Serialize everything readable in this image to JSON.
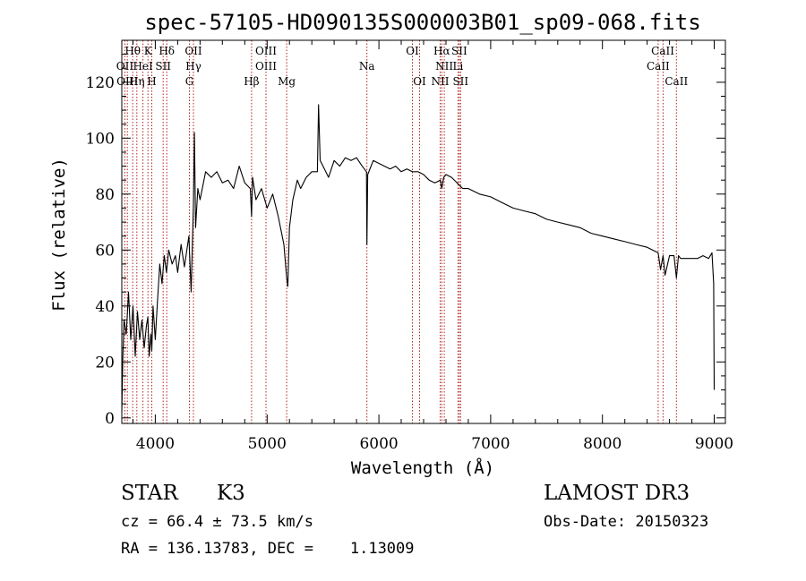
{
  "chart_data": {
    "type": "line",
    "title": "spec-57105-HD090135S000003B01_sp09-068.fits",
    "xlabel": "Wavelength (Å)",
    "ylabel": "Flux (relative)",
    "xlim": [
      3700,
      9100
    ],
    "ylim": [
      -2,
      135
    ],
    "xticks": [
      4000,
      5000,
      6000,
      7000,
      8000,
      9000
    ],
    "yticks": [
      0,
      20,
      40,
      60,
      80,
      100,
      120
    ],
    "series": [
      {
        "name": "flux",
        "x": [
          3700,
          3710,
          3720,
          3740,
          3760,
          3780,
          3800,
          3820,
          3840,
          3860,
          3880,
          3900,
          3920,
          3933,
          3945,
          3960,
          3968,
          3980,
          4000,
          4020,
          4040,
          4060,
          4080,
          4100,
          4120,
          4150,
          4180,
          4200,
          4230,
          4260,
          4300,
          4320,
          4340,
          4350,
          4360,
          4380,
          4400,
          4420,
          4450,
          4500,
          4550,
          4600,
          4650,
          4700,
          4750,
          4800,
          4850,
          4861,
          4870,
          4900,
          4950,
          5000,
          5050,
          5100,
          5150,
          5175,
          5185,
          5200,
          5230,
          5270,
          5300,
          5350,
          5400,
          5450,
          5460,
          5475,
          5500,
          5550,
          5600,
          5650,
          5700,
          5750,
          5800,
          5850,
          5889,
          5893,
          5900,
          5950,
          6000,
          6050,
          6100,
          6150,
          6200,
          6250,
          6300,
          6350,
          6400,
          6450,
          6500,
          6550,
          6563,
          6580,
          6600,
          6650,
          6700,
          6750,
          6800,
          6900,
          7000,
          7100,
          7200,
          7300,
          7400,
          7500,
          7600,
          7700,
          7800,
          7900,
          8000,
          8100,
          8200,
          8300,
          8400,
          8498,
          8520,
          8542,
          8560,
          8600,
          8640,
          8662,
          8680,
          8700,
          8750,
          8800,
          8850,
          8900,
          8950,
          8980,
          8995,
          9000
        ],
        "y": [
          2,
          22,
          35,
          30,
          45,
          28,
          40,
          22,
          38,
          28,
          35,
          25,
          33,
          36,
          22,
          30,
          24,
          40,
          28,
          42,
          55,
          48,
          58,
          52,
          60,
          55,
          58,
          52,
          62,
          54,
          65,
          45,
          75,
          102,
          68,
          82,
          78,
          82,
          88,
          86,
          88,
          84,
          85,
          82,
          90,
          84,
          82,
          72,
          86,
          78,
          82,
          75,
          80,
          72,
          62,
          50,
          47,
          68,
          78,
          85,
          82,
          86,
          88,
          88,
          112,
          92,
          90,
          86,
          92,
          90,
          93,
          92,
          93,
          90,
          88,
          62,
          87,
          92,
          91,
          90,
          89,
          90,
          88,
          89,
          88,
          88,
          87,
          85,
          84,
          85,
          82,
          86,
          87,
          86,
          84,
          82,
          82,
          80,
          79,
          77,
          75,
          74,
          73,
          71,
          70,
          69,
          68,
          66,
          65,
          64,
          63,
          62,
          61,
          59,
          53,
          58,
          51,
          58,
          58,
          50,
          58,
          57,
          57,
          57,
          57,
          58,
          57,
          59,
          48,
          10
        ]
      }
    ],
    "lines_top": [
      {
        "label": "Hθ",
        "x": 3798
      },
      {
        "label": "K",
        "x": 3934
      },
      {
        "label": "Hδ",
        "x": 4102
      },
      {
        "label": "OII",
        "x": 4341
      },
      {
        "label": "OIII",
        "x": 4990
      },
      {
        "label": "OI",
        "x": 6300
      },
      {
        "label": "Hα",
        "x": 6563
      },
      {
        "label": "SII",
        "x": 6720
      },
      {
        "label": "CaII",
        "x": 8540
      }
    ],
    "lines_mid": [
      {
        "label": "OII",
        "x": 3727
      },
      {
        "label": "HeI",
        "x": 3889
      },
      {
        "label": "SII",
        "x": 4070
      },
      {
        "label": "Hγ",
        "x": 4341
      },
      {
        "label": "OIII",
        "x": 4990
      },
      {
        "label": "Na",
        "x": 5893
      },
      {
        "label": "NII",
        "x": 6585
      },
      {
        "label": "Li",
        "x": 6708
      },
      {
        "label": "CaII",
        "x": 8498
      }
    ],
    "lines_bot": [
      {
        "label": "OIII",
        "x": 3750
      },
      {
        "label": "Hη",
        "x": 3835
      },
      {
        "label": "H",
        "x": 3968
      },
      {
        "label": "G",
        "x": 4305
      },
      {
        "label": "Hβ",
        "x": 4861
      },
      {
        "label": "Mg",
        "x": 5175
      },
      {
        "label": "OI",
        "x": 6364
      },
      {
        "label": "NII",
        "x": 6548
      },
      {
        "label": "SII",
        "x": 6731
      },
      {
        "label": "CaII",
        "x": 8662
      }
    ],
    "marker_lines": [
      3727,
      3750,
      3798,
      3835,
      3889,
      3934,
      3968,
      4070,
      4102,
      4305,
      4341,
      4861,
      4990,
      5175,
      5893,
      6300,
      6364,
      6548,
      6563,
      6585,
      6708,
      6720,
      6731,
      8498,
      8542,
      8662
    ],
    "marker_color": "#b22222"
  },
  "info": {
    "object_class": "STAR",
    "subclass": "K3",
    "survey": "LAMOST DR3",
    "redshift": "cz = 66.4 ± 73.5 km/s",
    "obs_date": "Obs-Date: 20150323",
    "coords": "RA = 136.13783, DEC =    1.13009"
  }
}
